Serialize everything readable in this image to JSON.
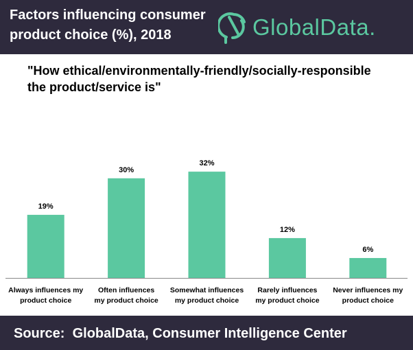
{
  "header": {
    "title_line1": "Factors influencing consumer",
    "title_line2": "product choice (%), 2018",
    "logo_text": "GlobalData.",
    "logo_icon": "globaldata-logo-icon"
  },
  "question": {
    "line1": "\"How ethical/environmentally-friendly/socially-responsible",
    "line2": "the product/service is\""
  },
  "footer": {
    "source": "Source:  GlobalData, Consumer Intelligence Center"
  },
  "colors": {
    "bar": "#5bc8a0",
    "header_bg": "#2e2a3d",
    "accent": "#5bc8a0"
  },
  "chart_data": {
    "type": "bar",
    "categories": [
      [
        "Always influences my",
        "product choice"
      ],
      [
        "Often influences",
        "my product choice"
      ],
      [
        "Somewhat influences",
        "my product choice"
      ],
      [
        "Rarely influences",
        "my product choice"
      ],
      [
        "Never influences my",
        "product choice"
      ]
    ],
    "values": [
      19,
      30,
      32,
      12,
      6
    ],
    "data_labels": [
      "19%",
      "30%",
      "32%",
      "12%",
      "6%"
    ],
    "ylim": [
      0,
      32
    ],
    "grid": false,
    "legend": "none"
  }
}
